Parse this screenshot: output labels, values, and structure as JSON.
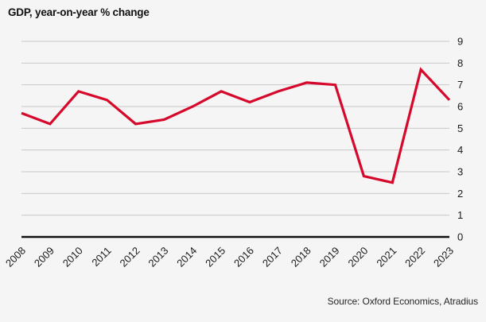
{
  "page": {
    "title": "GDP, year-on-year % change",
    "source": "Source: Oxford Economics, Atradius"
  },
  "colors": {
    "background": "#f5f5f5",
    "line": "#d6082b",
    "gridline": "#c8c8c8",
    "zero_axis": "#111111",
    "text": "#1a1a1a"
  },
  "chart_data": {
    "type": "line",
    "title": "GDP, year-on-year % change",
    "x": [
      "2008",
      "2009",
      "2010",
      "2011",
      "2012",
      "2013",
      "2014",
      "2015",
      "2016",
      "2017",
      "2018",
      "2019",
      "2020",
      "2021",
      "2022",
      "2023"
    ],
    "series": [
      {
        "name": "GDP year-on-year % change",
        "values": [
          5.7,
          5.2,
          6.7,
          6.3,
          5.2,
          5.4,
          6.0,
          6.7,
          6.2,
          6.7,
          7.1,
          7.0,
          2.8,
          2.5,
          7.7,
          6.3
        ]
      }
    ],
    "xlabel": "",
    "ylabel": "",
    "ylim": [
      0,
      9
    ],
    "yticks": [
      0,
      1,
      2,
      3,
      4,
      5,
      6,
      7,
      8,
      9
    ],
    "ytick_side": "right",
    "grid": true,
    "legend": "none",
    "source": "Source: Oxford Economics, Atradius"
  }
}
